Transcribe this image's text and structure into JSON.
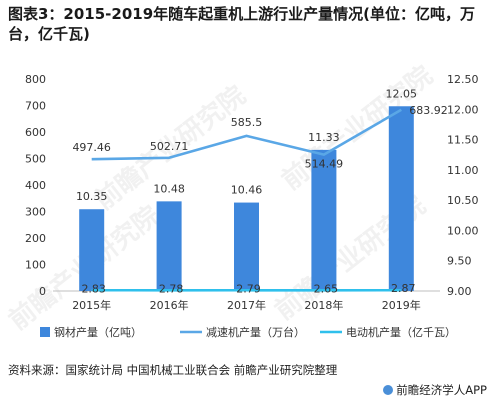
{
  "title": "图表3：2015-2019年随车起重机上游行业产量情况(单位：亿吨，万台，亿千瓦)",
  "source": "资料来源：国家统计局 中国机械工业联合会 前瞻产业研究院整理",
  "brand": "前瞻经济学人APP",
  "watermark": "前瞻产业研究院",
  "chart_data": {
    "type": "bar",
    "categories": [
      "2015年",
      "2016年",
      "2017年",
      "2018年",
      "2019年"
    ],
    "left_axis": {
      "ticks": [
        "0",
        "100",
        "200",
        "300",
        "400",
        "500",
        "600",
        "700",
        "800"
      ],
      "range": [
        0,
        800
      ]
    },
    "right_axis": {
      "ticks": [
        "9.00",
        "9.50",
        "10.00",
        "10.50",
        "11.00",
        "11.50",
        "12.00",
        "12.50"
      ],
      "range": [
        9.0,
        12.5
      ]
    },
    "series": [
      {
        "name": "钢材产量（亿吨）",
        "type": "bar",
        "axis": "right",
        "color": "#3e87dc",
        "values": [
          10.35,
          10.48,
          10.46,
          11.33,
          12.05
        ],
        "labels": [
          "10.35",
          "10.48",
          "10.46",
          "11.33",
          "12.05"
        ]
      },
      {
        "name": "减速机产量（万台）",
        "type": "line",
        "axis": "left",
        "color": "#5aa7e6",
        "values": [
          497.46,
          502.71,
          585.5,
          514.49,
          683.92
        ],
        "labels": [
          "497.46",
          "502.71",
          "585.5",
          "514.49",
          "683.92"
        ]
      },
      {
        "name": "电动机产量（亿千瓦）",
        "type": "line",
        "axis": "left",
        "color": "#2fc0ec",
        "values": [
          2.83,
          2.78,
          2.79,
          2.65,
          2.87
        ],
        "labels": [
          "2.83",
          "2.78",
          "2.79",
          "2.65",
          "2.87"
        ]
      }
    ],
    "legend_position": "bottom",
    "grid": false
  }
}
